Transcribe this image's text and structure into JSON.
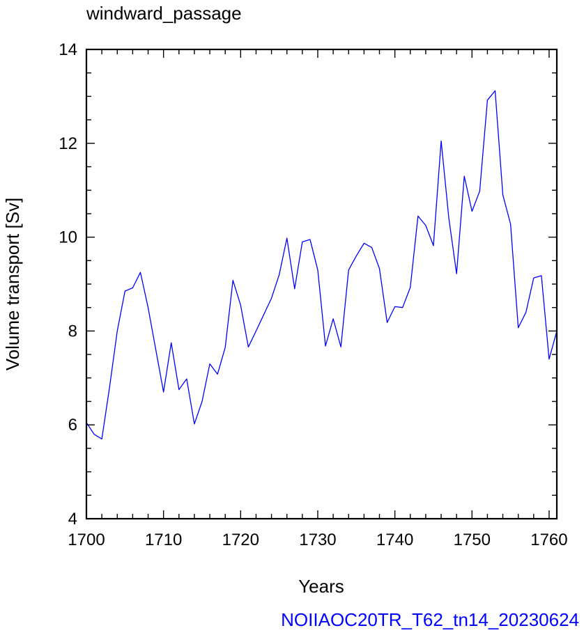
{
  "chart_data": {
    "type": "line",
    "title": "windward_passage",
    "xlabel": "Years",
    "ylabel": "Volume transport [Sv]",
    "footer": "NOIIAOC20TR_T62_tn14_20230624",
    "xlim": [
      1700,
      1761
    ],
    "ylim": [
      4,
      14
    ],
    "x_ticks": [
      1700,
      1710,
      1720,
      1730,
      1740,
      1750,
      1760
    ],
    "y_ticks": [
      4,
      6,
      8,
      10,
      12,
      14
    ],
    "x_minor_step": 2,
    "y_minor_step": 0.5,
    "grid": false,
    "line_color": "#0000ff",
    "footer_color": "#0000ff",
    "series": [
      {
        "x": [
          1700,
          1701,
          1702,
          1703,
          1704,
          1705,
          1706,
          1707,
          1708,
          1709,
          1710,
          1711,
          1712,
          1713,
          1714,
          1715,
          1716,
          1717,
          1718,
          1719,
          1720,
          1721,
          1722,
          1723,
          1724,
          1725,
          1726,
          1727,
          1728,
          1729,
          1730,
          1731,
          1732,
          1733,
          1734,
          1735,
          1736,
          1737,
          1738,
          1739,
          1740,
          1741,
          1742,
          1743,
          1744,
          1745,
          1746,
          1747,
          1748,
          1749,
          1750,
          1751,
          1752,
          1753,
          1754,
          1755,
          1756,
          1757,
          1758,
          1759,
          1760,
          1761
        ],
        "values": [
          6.05,
          5.8,
          5.7,
          6.8,
          8.0,
          8.85,
          8.92,
          9.25,
          8.5,
          7.6,
          6.7,
          7.75,
          6.75,
          6.98,
          6.02,
          6.5,
          7.3,
          7.08,
          7.65,
          9.08,
          8.55,
          7.66,
          8.0,
          8.35,
          8.7,
          9.2,
          9.98,
          8.9,
          9.9,
          9.95,
          9.3,
          7.68,
          8.26,
          7.66,
          9.3,
          9.6,
          9.87,
          9.78,
          9.33,
          8.18,
          8.52,
          8.5,
          8.93,
          10.45,
          10.25,
          9.82,
          12.05,
          10.4,
          9.22,
          11.3,
          10.55,
          10.98,
          12.92,
          13.12,
          10.9,
          10.28,
          8.07,
          8.4,
          9.13,
          9.18,
          7.4,
          8.0
        ]
      }
    ]
  }
}
